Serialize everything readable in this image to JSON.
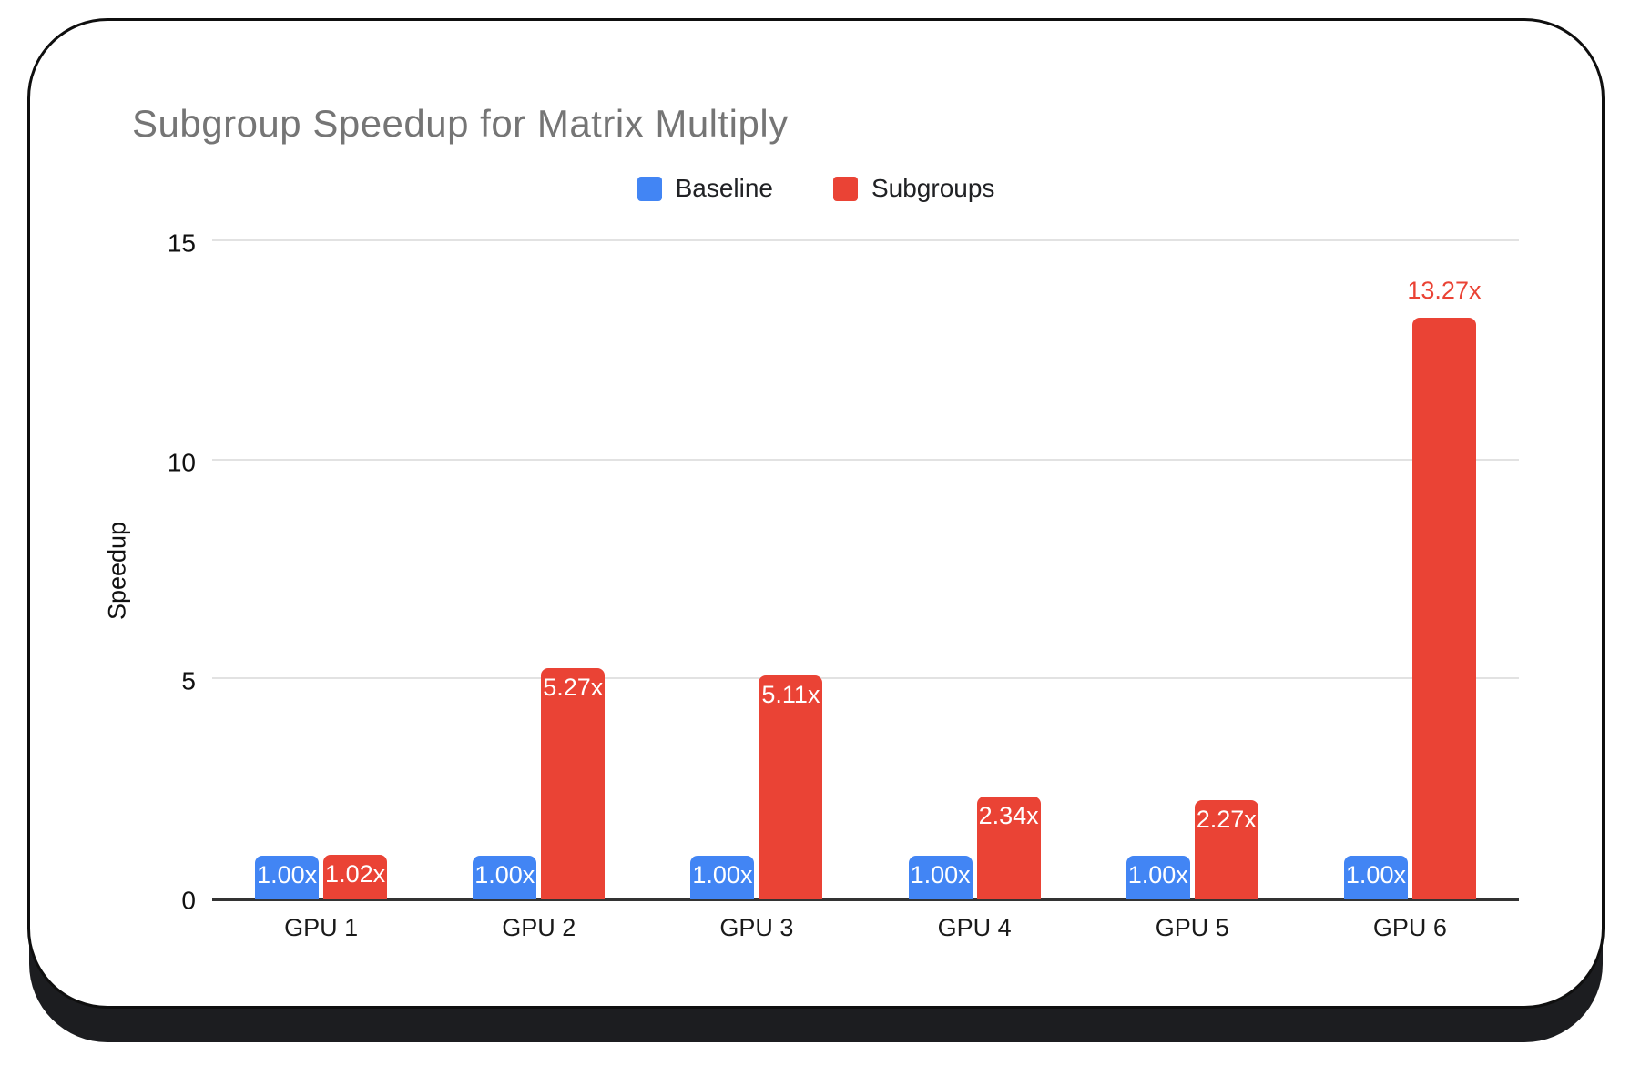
{
  "card": {
    "background": "#ffffff",
    "border_color": "#0f0f0f",
    "shadow_color": "#1c1d20"
  },
  "chart_data": {
    "type": "bar",
    "title": "Subgroup Speedup for Matrix Multiply",
    "title_color": "#757575",
    "categories": [
      "GPU 1",
      "GPU 2",
      "GPU 3",
      "GPU 4",
      "GPU 5",
      "GPU 6"
    ],
    "series": [
      {
        "name": "Baseline",
        "color": "#4285F4",
        "values": [
          1.0,
          1.0,
          1.0,
          1.0,
          1.0,
          1.0
        ],
        "labels": [
          "1.00x",
          "1.00x",
          "1.00x",
          "1.00x",
          "1.00x",
          "1.00x"
        ],
        "label_outside": [
          false,
          false,
          false,
          false,
          false,
          false
        ]
      },
      {
        "name": "Subgroups",
        "color": "#EA4335",
        "values": [
          1.02,
          5.27,
          5.11,
          2.34,
          2.27,
          13.27
        ],
        "labels": [
          "1.02x",
          "5.27x",
          "5.11x",
          "2.34x",
          "2.27x",
          "13.27x"
        ],
        "label_outside": [
          false,
          false,
          false,
          false,
          false,
          true
        ]
      }
    ],
    "xlabel": "",
    "ylabel": "Speedup",
    "ylim": [
      0,
      15
    ],
    "yticks": [
      0,
      5,
      10,
      15
    ],
    "grid": true,
    "legend_position": "top-center",
    "label_color_inside": "#ffffff",
    "label_color_outside": "#EA4335",
    "gridline_color": "#e2e2e2",
    "axis_line_color": "#333333",
    "tick_label_color": "#111111"
  }
}
